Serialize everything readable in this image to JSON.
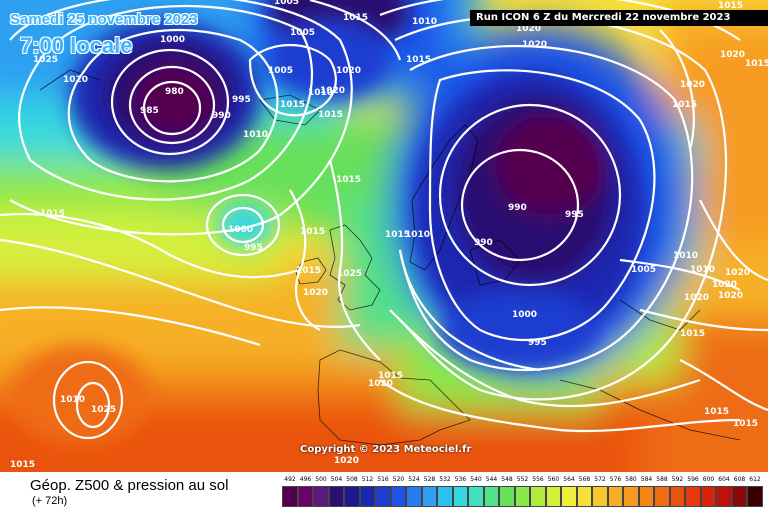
{
  "header": {
    "date_title": "Samedi 25 novembre 2023",
    "time_title": "7:00 locale",
    "run_info": "Run ICON 6 Z du Mercredi 22 novembre 2023"
  },
  "copyright": "Copyright © 2023 Meteociel.fr",
  "footer": {
    "product_title": "Géop. Z500 & pression au sol",
    "product_subtitle": "(+ 72h)"
  },
  "colors": {
    "low_core": "#55004f",
    "deep_blue": "#101a8a",
    "blue": "#1e4fe0",
    "light_blue": "#2fb0f0",
    "cyan": "#36e0e0",
    "green": "#5ee052",
    "yellow_green": "#c8f03c",
    "yellow": "#f6f03c",
    "orange": "#f8a020",
    "red_orange": "#f06018",
    "isobar": "#ffffff",
    "title_blue": "#3fb5ff"
  },
  "legend": {
    "values": [
      "492",
      "496",
      "500",
      "504",
      "508",
      "512",
      "516",
      "520",
      "524",
      "528",
      "532",
      "536",
      "540",
      "544",
      "548",
      "552",
      "556",
      "560",
      "564",
      "568",
      "572",
      "576",
      "580",
      "584",
      "588",
      "592",
      "596",
      "600",
      "604",
      "608",
      "612"
    ],
    "colors": [
      "#55004f",
      "#6a0068",
      "#5a1a7a",
      "#2a1070",
      "#1a1a8e",
      "#1a28b0",
      "#1e3cd0",
      "#1e55e8",
      "#2a7af0",
      "#2fa0f2",
      "#2fc0f0",
      "#36d8e0",
      "#40e0c0",
      "#52e08a",
      "#66e05a",
      "#8ae84a",
      "#b0ec40",
      "#d4f03c",
      "#eef03c",
      "#f6e03a",
      "#f6c830",
      "#f6b028",
      "#f69a20",
      "#f28418",
      "#ee6c14",
      "#ea5210",
      "#e63a0e",
      "#d8220c",
      "#c0100a",
      "#8a0808",
      "#3a0000"
    ]
  },
  "isobar_labels": [
    {
      "text": "1000"
    },
    {
      "text": "980"
    },
    {
      "text": "985"
    },
    {
      "text": "1025"
    },
    {
      "text": "1020"
    },
    {
      "text": "1005"
    },
    {
      "text": "1015"
    },
    {
      "text": "1010"
    },
    {
      "text": "995"
    },
    {
      "text": "990"
    },
    {
      "text": "1020"
    },
    {
      "text": "1015"
    },
    {
      "text": "1010"
    },
    {
      "text": "1000"
    },
    {
      "text": "995"
    },
    {
      "text": "1015"
    },
    {
      "text": "1015"
    },
    {
      "text": "1020"
    },
    {
      "text": "1025"
    },
    {
      "text": "1015"
    },
    {
      "text": "1015"
    },
    {
      "text": "1010"
    },
    {
      "text": "1005"
    },
    {
      "text": "1015"
    },
    {
      "text": "1020"
    },
    {
      "text": "1010"
    },
    {
      "text": "1005"
    },
    {
      "text": "1020"
    },
    {
      "text": "1015"
    },
    {
      "text": "1020"
    },
    {
      "text": "990"
    },
    {
      "text": "995"
    },
    {
      "text": "990"
    },
    {
      "text": "1015"
    },
    {
      "text": "1010"
    },
    {
      "text": "1000"
    },
    {
      "text": "995"
    },
    {
      "text": "1020"
    },
    {
      "text": "1015"
    },
    {
      "text": "1020"
    },
    {
      "text": "1015"
    },
    {
      "text": "1005"
    },
    {
      "text": "1010"
    },
    {
      "text": "1010"
    },
    {
      "text": "1020"
    },
    {
      "text": "1020"
    },
    {
      "text": "1020"
    },
    {
      "text": "1020"
    },
    {
      "text": "1015"
    },
    {
      "text": "1015"
    },
    {
      "text": "1015"
    },
    {
      "text": "1015"
    },
    {
      "text": "1025"
    },
    {
      "text": "1015"
    },
    {
      "text": "1020"
    },
    {
      "text": "1015"
    },
    {
      "text": "1020"
    }
  ]
}
